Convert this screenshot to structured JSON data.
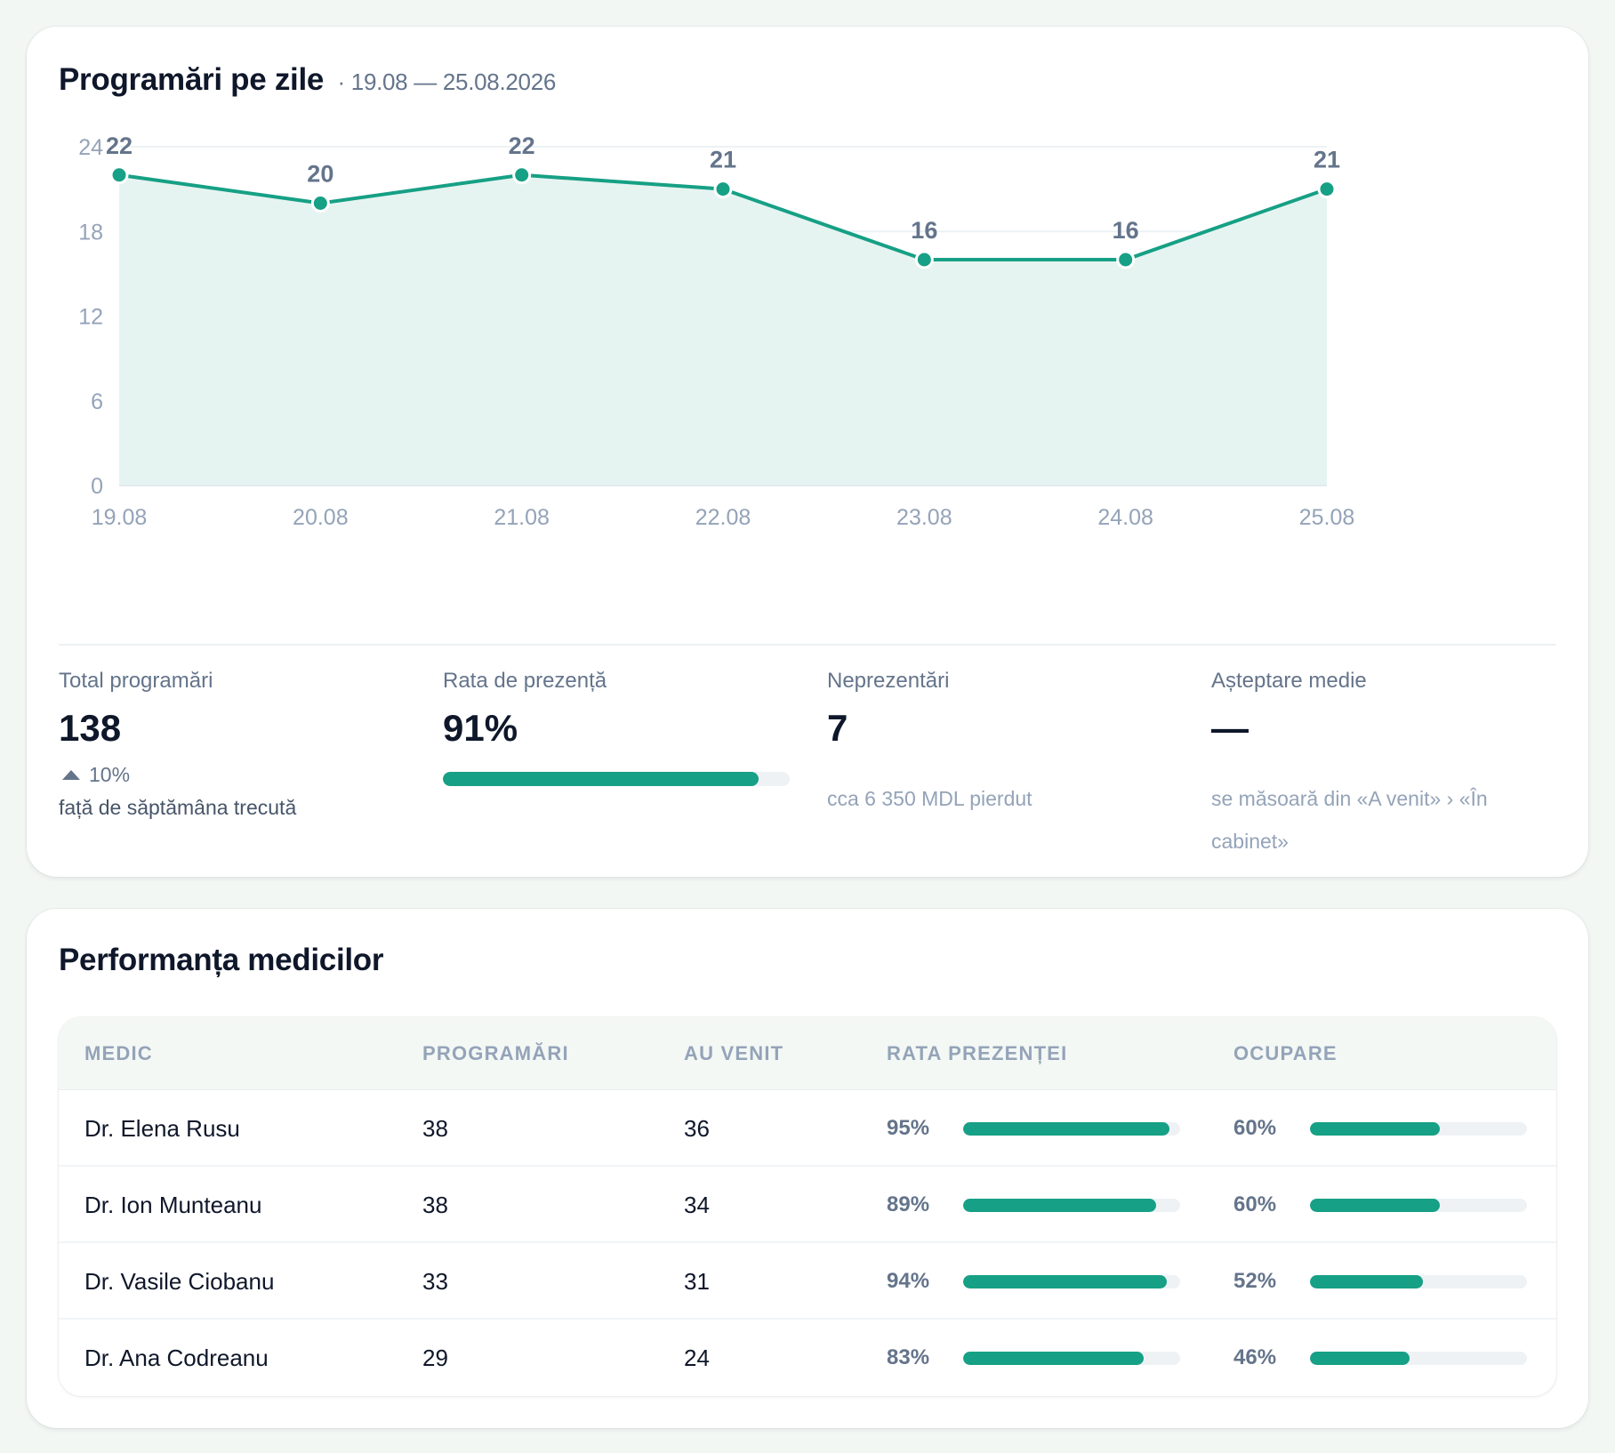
{
  "appointments": {
    "title": "Programări pe zile",
    "range": "· 19.08 — 25.08.2026",
    "accent_color": "#16a085",
    "area_color": "#e6f4f1"
  },
  "chart_data": {
    "type": "area",
    "title": "Programări pe zile",
    "categories": [
      "19.08",
      "20.08",
      "21.08",
      "22.08",
      "23.08",
      "24.08",
      "25.08"
    ],
    "values": [
      22,
      20,
      22,
      21,
      16,
      16,
      21
    ],
    "y_ticks": [
      0,
      6,
      12,
      18,
      24
    ],
    "ylim": [
      0,
      24
    ],
    "grid": true,
    "data_labels": true,
    "xlabel": "",
    "ylabel": ""
  },
  "stats": {
    "total": {
      "label": "Total programări",
      "value": "138",
      "trend": "10%",
      "trend_note": "față de săptămâna trecută"
    },
    "presence": {
      "label": "Rata de prezență",
      "value": "91%",
      "percent": 91
    },
    "noshow": {
      "label": "Neprezentări",
      "value": "7",
      "sub": "cca 6 350 MDL pierdut"
    },
    "wait": {
      "label": "Așteptare medie",
      "value": "—",
      "sub": "se măsoară din «A venit» › «În cabinet»"
    }
  },
  "doctors": {
    "title": "Performanța medicilor",
    "columns": [
      "MEDIC",
      "PROGRAMĂRI",
      "AU VENIT",
      "RATA PREZENȚEI",
      "OCUPARE"
    ],
    "rows": [
      {
        "name": "Dr. Elena Rusu",
        "appointments": "38",
        "arrived": "36",
        "presence": "95%",
        "presence_pct": 95,
        "occupancy": "60%",
        "occupancy_pct": 60
      },
      {
        "name": "Dr. Ion Munteanu",
        "appointments": "38",
        "arrived": "34",
        "presence": "89%",
        "presence_pct": 89,
        "occupancy": "60%",
        "occupancy_pct": 60
      },
      {
        "name": "Dr. Vasile Ciobanu",
        "appointments": "33",
        "arrived": "31",
        "presence": "94%",
        "presence_pct": 94,
        "occupancy": "52%",
        "occupancy_pct": 52
      },
      {
        "name": "Dr. Ana Codreanu",
        "appointments": "29",
        "arrived": "24",
        "presence": "83%",
        "presence_pct": 83,
        "occupancy": "46%",
        "occupancy_pct": 46
      }
    ]
  }
}
